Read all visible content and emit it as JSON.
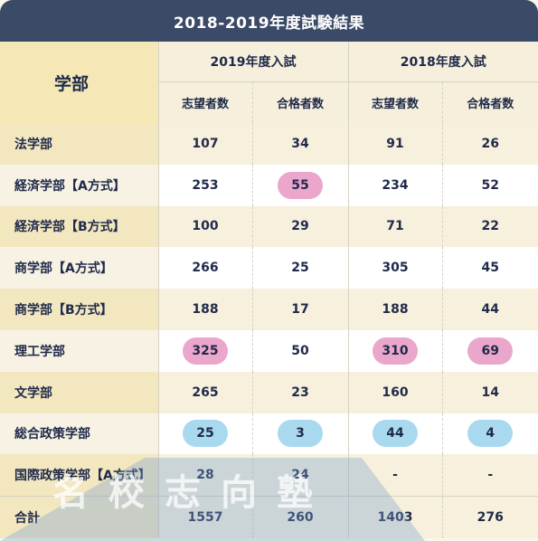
{
  "title": "2018-2019年度試験結果",
  "header": {
    "dept": "学部",
    "year_2019": "2019年度入試",
    "year_2018": "2018年度入試",
    "applicants": "志望者数",
    "passed": "合格者数"
  },
  "rows": [
    {
      "name": "法学部",
      "a2019": "107",
      "p2019": "34",
      "a2018": "91",
      "p2018": "26"
    },
    {
      "name": "経済学部【A方式】",
      "a2019": "253",
      "p2019": "55",
      "a2018": "234",
      "p2018": "52"
    },
    {
      "name": "経済学部【B方式】",
      "a2019": "100",
      "p2019": "29",
      "a2018": "71",
      "p2018": "22"
    },
    {
      "name": "商学部【A方式】",
      "a2019": "266",
      "p2019": "25",
      "a2018": "305",
      "p2018": "45"
    },
    {
      "name": "商学部【B方式】",
      "a2019": "188",
      "p2019": "17",
      "a2018": "188",
      "p2018": "44"
    },
    {
      "name": "理工学部",
      "a2019": "325",
      "p2019": "50",
      "a2018": "310",
      "p2018": "69"
    },
    {
      "name": "文学部",
      "a2019": "265",
      "p2019": "23",
      "a2018": "160",
      "p2018": "14"
    },
    {
      "name": "総合政策学部",
      "a2019": "25",
      "p2019": "3",
      "a2018": "44",
      "p2018": "4"
    },
    {
      "name": "国際政策学部【A方式】",
      "a2019": "28",
      "p2019": "24",
      "a2018": "-",
      "p2018": "-"
    }
  ],
  "total": {
    "name": "合計",
    "a2019": "1557",
    "p2019": "260",
    "a2018": "1403",
    "p2018": "276"
  },
  "highlights": {
    "pink": "#eba6cb",
    "blue": "#a9d9ef"
  },
  "watermark": "名校志向塾"
}
